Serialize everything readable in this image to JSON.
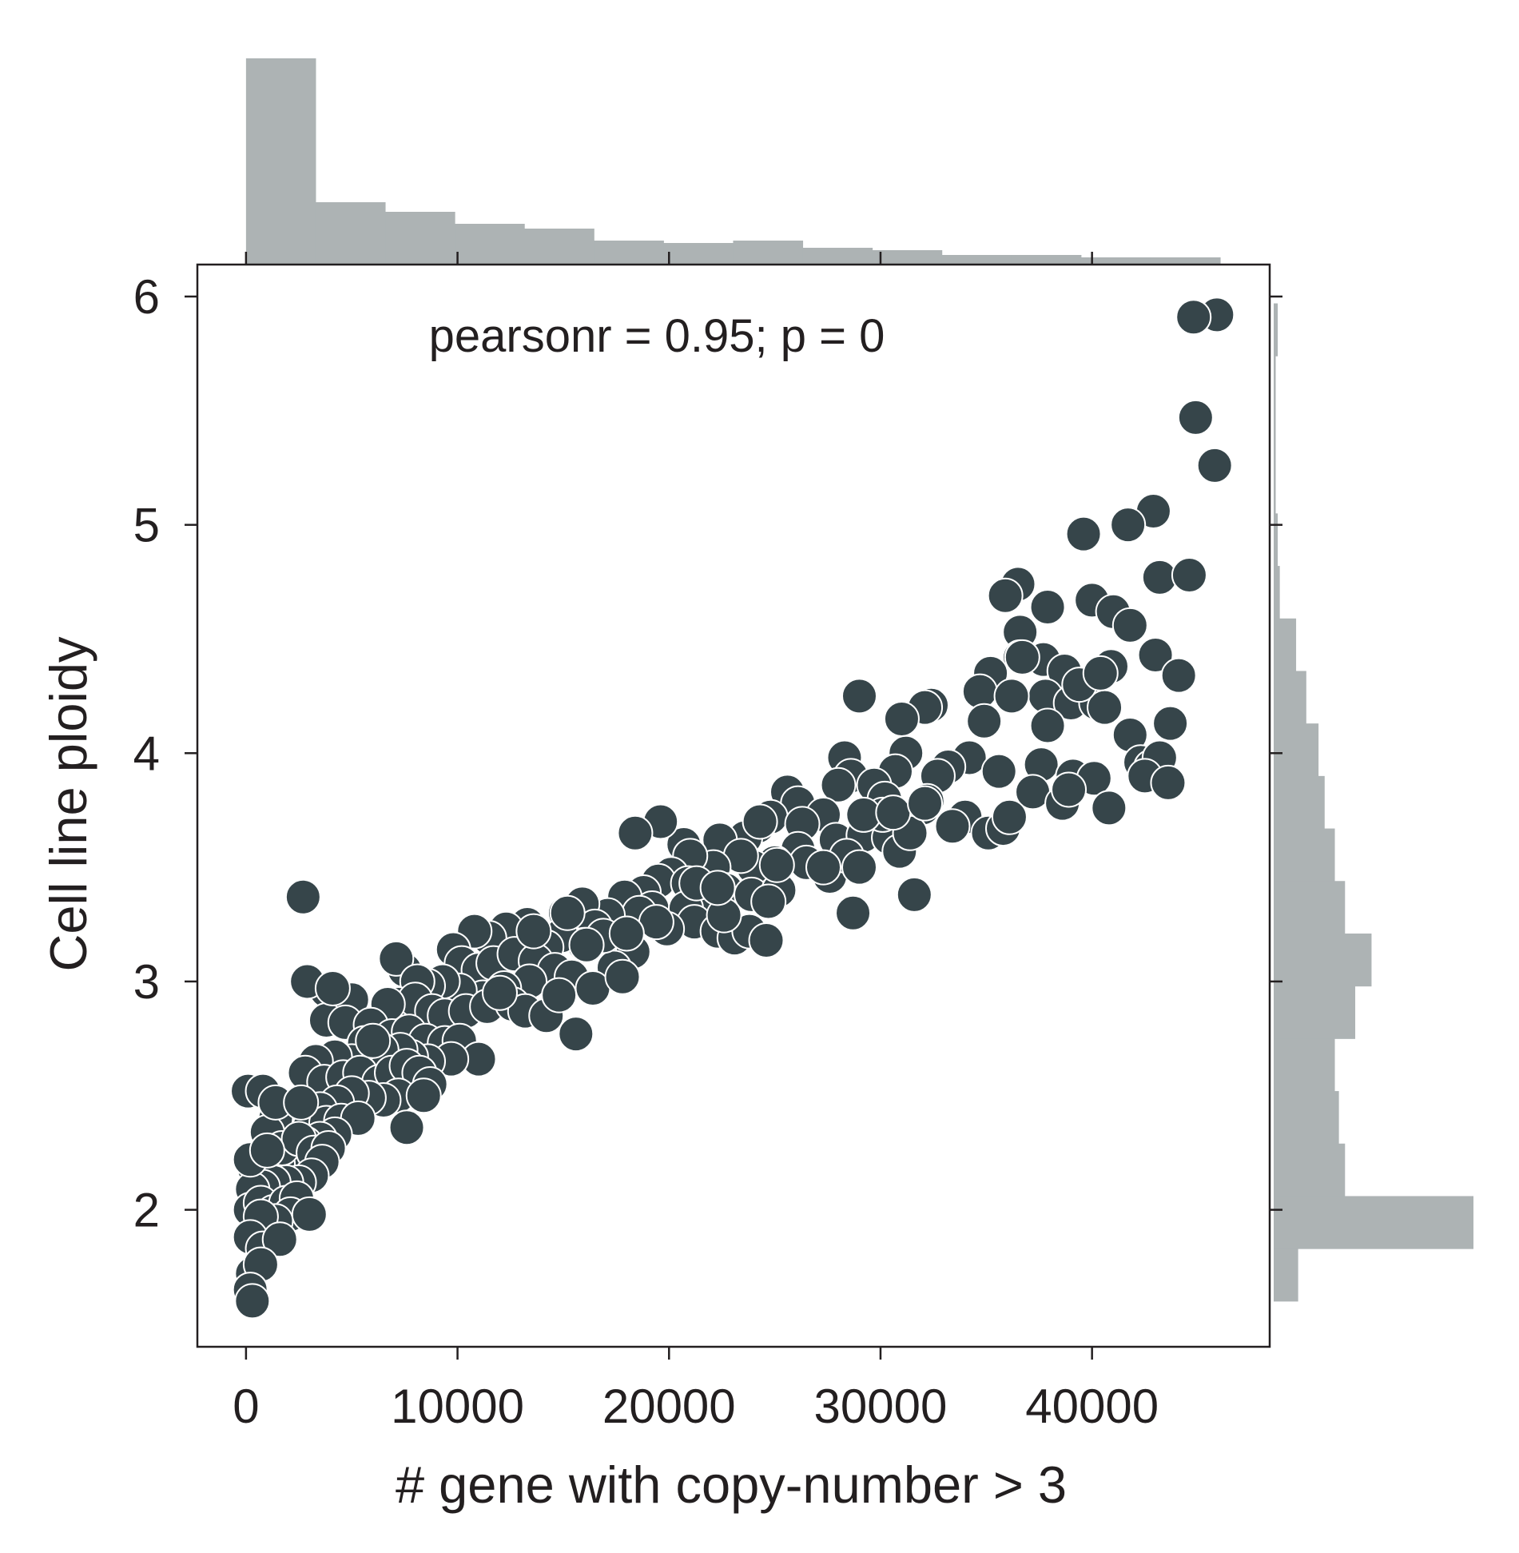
{
  "chart_data": {
    "type": "scatter",
    "xlabel": "# gene with copy-number > 3",
    "ylabel": "Cell line ploidy",
    "annotation": "pearsonr = 0.95; p = 0",
    "xlim": [
      -2300,
      48400
    ],
    "ylim": [
      1.4,
      6.14
    ],
    "xticks": [
      0,
      10000,
      20000,
      30000,
      40000
    ],
    "xtick_labels": [
      "0",
      "10000",
      "20000",
      "30000",
      "40000"
    ],
    "yticks": [
      2,
      3,
      4,
      5,
      6
    ],
    "ytick_labels": [
      "2",
      "3",
      "4",
      "5",
      "6"
    ],
    "grid": false,
    "colors": {
      "points": "#36454a",
      "point_edge": "#ffffff",
      "histogram": "#adb3b4",
      "axis": "#231f20"
    },
    "x_histogram": {
      "bin_edges": [
        0,
        3290,
        6580,
        9870,
        13160,
        16450,
        19740,
        23030,
        26320,
        29610,
        32900,
        36190,
        39480,
        42770,
        46060
      ],
      "counts": [
        86,
        26,
        22,
        17,
        15,
        10,
        9,
        10,
        7,
        6,
        4,
        4,
        3,
        3
      ]
    },
    "y_histogram": {
      "bin_edges": [
        1.6,
        1.83,
        2.06,
        2.29,
        2.52,
        2.75,
        2.98,
        3.21,
        3.44,
        3.67,
        3.9,
        4.13,
        4.36,
        4.59,
        4.82,
        5.05,
        5.28,
        5.51,
        5.74,
        5.97
      ],
      "counts": [
        12,
        98,
        35,
        32,
        30,
        40,
        48,
        35,
        30,
        25,
        22,
        16,
        11,
        3,
        2,
        1,
        1,
        1,
        2
      ]
    },
    "points": [
      [
        45900,
        5.92
      ],
      [
        44800,
        5.91
      ],
      [
        44900,
        5.47
      ],
      [
        45800,
        5.26
      ],
      [
        42900,
        5.06
      ],
      [
        41700,
        5.0
      ],
      [
        39600,
        4.96
      ],
      [
        43200,
        4.77
      ],
      [
        44600,
        4.78
      ],
      [
        36500,
        4.74
      ],
      [
        35900,
        4.69
      ],
      [
        37900,
        4.64
      ],
      [
        40000,
        4.67
      ],
      [
        41000,
        4.62
      ],
      [
        36600,
        4.53
      ],
      [
        41800,
        4.56
      ],
      [
        36600,
        4.42
      ],
      [
        37700,
        4.41
      ],
      [
        43000,
        4.43
      ],
      [
        40900,
        4.38
      ],
      [
        35200,
        4.35
      ],
      [
        38700,
        4.36
      ],
      [
        34700,
        4.27
      ],
      [
        37800,
        4.25
      ],
      [
        36200,
        4.25
      ],
      [
        39000,
        4.22
      ],
      [
        40200,
        4.22
      ],
      [
        40600,
        4.2
      ],
      [
        44100,
        4.34
      ],
      [
        32400,
        4.21
      ],
      [
        32100,
        4.2
      ],
      [
        29000,
        4.25
      ],
      [
        31000,
        4.15
      ],
      [
        34900,
        4.14
      ],
      [
        37900,
        4.12
      ],
      [
        43700,
        4.13
      ],
      [
        31200,
        4.0
      ],
      [
        34200,
        3.98
      ],
      [
        41800,
        4.08
      ],
      [
        42300,
        3.96
      ],
      [
        42800,
        3.94
      ],
      [
        43200,
        3.98
      ],
      [
        42500,
        3.9
      ],
      [
        43600,
        3.87
      ],
      [
        35600,
        3.92
      ],
      [
        37600,
        3.95
      ],
      [
        39100,
        3.9
      ],
      [
        40100,
        3.89
      ],
      [
        28300,
        3.98
      ],
      [
        28600,
        3.9
      ],
      [
        30700,
        3.92
      ],
      [
        33200,
        3.94
      ],
      [
        32700,
        3.9
      ],
      [
        37200,
        3.83
      ],
      [
        38600,
        3.78
      ],
      [
        38900,
        3.84
      ],
      [
        40800,
        3.76
      ],
      [
        28000,
        3.86
      ],
      [
        29700,
        3.86
      ],
      [
        30200,
        3.8
      ],
      [
        32200,
        3.79
      ],
      [
        32000,
        3.76
      ],
      [
        34000,
        3.72
      ],
      [
        35100,
        3.65
      ],
      [
        35800,
        3.67
      ],
      [
        36100,
        3.72
      ],
      [
        25600,
        3.83
      ],
      [
        26100,
        3.78
      ],
      [
        27300,
        3.73
      ],
      [
        24800,
        3.72
      ],
      [
        26300,
        3.69
      ],
      [
        27900,
        3.62
      ],
      [
        29200,
        3.64
      ],
      [
        30400,
        3.63
      ],
      [
        30900,
        3.57
      ],
      [
        31400,
        3.65
      ],
      [
        30100,
        3.73
      ],
      [
        33400,
        3.68
      ],
      [
        24200,
        3.68
      ],
      [
        23600,
        3.63
      ],
      [
        22400,
        3.62
      ],
      [
        20700,
        3.6
      ],
      [
        19600,
        3.7
      ],
      [
        18400,
        3.65
      ],
      [
        26100,
        3.58
      ],
      [
        25000,
        3.52
      ],
      [
        26500,
        3.52
      ],
      [
        27600,
        3.46
      ],
      [
        28400,
        3.55
      ],
      [
        29000,
        3.5
      ],
      [
        28700,
        3.3
      ],
      [
        31600,
        3.38
      ],
      [
        24000,
        3.5
      ],
      [
        23400,
        3.55
      ],
      [
        22100,
        3.5
      ],
      [
        21000,
        3.55
      ],
      [
        20100,
        3.47
      ],
      [
        19500,
        3.44
      ],
      [
        20900,
        3.43
      ],
      [
        21800,
        3.38
      ],
      [
        22700,
        3.4
      ],
      [
        23900,
        3.38
      ],
      [
        25200,
        3.4
      ],
      [
        24700,
        3.35
      ],
      [
        18800,
        3.39
      ],
      [
        17900,
        3.37
      ],
      [
        19200,
        3.32
      ],
      [
        20800,
        3.32
      ],
      [
        21200,
        3.26
      ],
      [
        22300,
        3.22
      ],
      [
        23100,
        3.19
      ],
      [
        23800,
        3.22
      ],
      [
        24600,
        3.18
      ],
      [
        22600,
        3.29
      ],
      [
        19900,
        3.23
      ],
      [
        18600,
        3.3
      ],
      [
        17100,
        3.29
      ],
      [
        15900,
        3.34
      ],
      [
        15100,
        3.3
      ],
      [
        16500,
        3.24
      ],
      [
        17600,
        3.18
      ],
      [
        18300,
        3.13
      ],
      [
        17400,
        3.06
      ],
      [
        16900,
        3.2
      ],
      [
        16000,
        3.16
      ],
      [
        14900,
        3.2
      ],
      [
        14200,
        3.15
      ],
      [
        13300,
        3.25
      ],
      [
        12300,
        3.23
      ],
      [
        11500,
        3.19
      ],
      [
        10800,
        3.22
      ],
      [
        9800,
        3.14
      ],
      [
        10200,
        3.08
      ],
      [
        11000,
        3.05
      ],
      [
        11700,
        3.08
      ],
      [
        12700,
        3.12
      ],
      [
        13700,
        3.09
      ],
      [
        14600,
        3.05
      ],
      [
        15400,
        3.02
      ],
      [
        16400,
        2.97
      ],
      [
        17800,
        3.02
      ],
      [
        13400,
        3.0
      ],
      [
        12200,
        2.97
      ],
      [
        11200,
        2.93
      ],
      [
        10100,
        2.96
      ],
      [
        9300,
        3.0
      ],
      [
        8600,
        2.98
      ],
      [
        7500,
        3.05
      ],
      [
        7100,
        3.1
      ],
      [
        8100,
        3.0
      ],
      [
        7200,
        2.9
      ],
      [
        8000,
        2.92
      ],
      [
        8800,
        2.87
      ],
      [
        9400,
        2.85
      ],
      [
        10400,
        2.87
      ],
      [
        11400,
        2.89
      ],
      [
        12600,
        2.9
      ],
      [
        13200,
        2.87
      ],
      [
        14200,
        2.85
      ],
      [
        14800,
        2.94
      ],
      [
        15600,
        2.77
      ],
      [
        5000,
        2.92
      ],
      [
        3800,
        2.96
      ],
      [
        6700,
        2.9
      ],
      [
        3800,
        2.83
      ],
      [
        4700,
        2.82
      ],
      [
        5900,
        2.81
      ],
      [
        6900,
        2.76
      ],
      [
        7700,
        2.78
      ],
      [
        8500,
        2.74
      ],
      [
        9400,
        2.73
      ],
      [
        10100,
        2.74
      ],
      [
        11000,
        2.66
      ],
      [
        9700,
        2.66
      ],
      [
        8600,
        2.65
      ],
      [
        7800,
        2.67
      ],
      [
        7300,
        2.7
      ],
      [
        6400,
        2.7
      ],
      [
        5600,
        2.73
      ],
      [
        5000,
        2.65
      ],
      [
        4200,
        2.67
      ],
      [
        3300,
        2.65
      ],
      [
        2800,
        2.6
      ],
      [
        3700,
        2.56
      ],
      [
        4600,
        2.58
      ],
      [
        5400,
        2.6
      ],
      [
        6300,
        2.56
      ],
      [
        6900,
        2.6
      ],
      [
        7600,
        2.63
      ],
      [
        8200,
        2.6
      ],
      [
        8700,
        2.55
      ],
      [
        7200,
        2.5
      ],
      [
        6500,
        2.48
      ],
      [
        5800,
        2.49
      ],
      [
        5000,
        2.51
      ],
      [
        4300,
        2.47
      ],
      [
        3500,
        2.44
      ],
      [
        2700,
        2.4
      ],
      [
        1900,
        2.37
      ],
      [
        2100,
        2.43
      ],
      [
        1400,
        2.4
      ],
      [
        1000,
        2.34
      ],
      [
        3000,
        2.36
      ],
      [
        3800,
        2.38
      ],
      [
        4500,
        2.39
      ],
      [
        5300,
        2.4
      ],
      [
        8400,
        2.5
      ],
      [
        7600,
        2.36
      ],
      [
        4200,
        2.33
      ],
      [
        3500,
        2.31
      ],
      [
        2800,
        2.29
      ],
      [
        2300,
        2.23
      ],
      [
        1500,
        2.2
      ],
      [
        900,
        2.2
      ],
      [
        400,
        2.18
      ],
      [
        1700,
        2.27
      ],
      [
        2500,
        2.31
      ],
      [
        3200,
        2.25
      ],
      [
        3900,
        2.27
      ],
      [
        3600,
        2.21
      ],
      [
        3100,
        2.15
      ],
      [
        2500,
        2.12
      ],
      [
        1900,
        2.12
      ],
      [
        1300,
        2.12
      ],
      [
        800,
        2.1
      ],
      [
        300,
        2.09
      ],
      [
        200,
        2.0
      ],
      [
        700,
        2.03
      ],
      [
        1300,
        1.99
      ],
      [
        1900,
        2.03
      ],
      [
        2400,
        2.05
      ],
      [
        2100,
        1.98
      ],
      [
        1400,
        1.95
      ],
      [
        700,
        1.97
      ],
      [
        200,
        1.88
      ],
      [
        800,
        1.83
      ],
      [
        1600,
        1.87
      ],
      [
        300,
        1.72
      ],
      [
        700,
        1.76
      ],
      [
        200,
        1.65
      ],
      [
        300,
        1.6
      ],
      [
        200,
        2.22
      ],
      [
        100,
        2.52
      ],
      [
        800,
        2.52
      ],
      [
        1400,
        2.47
      ],
      [
        2600,
        2.47
      ],
      [
        2900,
        3.0
      ],
      [
        2700,
        3.37
      ],
      [
        4100,
        2.97
      ],
      [
        3000,
        1.98
      ],
      [
        1000,
        2.26
      ],
      [
        6000,
        2.74
      ],
      [
        12000,
        2.95
      ],
      [
        15200,
        3.3
      ],
      [
        16100,
        3.16
      ],
      [
        13600,
        3.22
      ],
      [
        21300,
        3.43
      ],
      [
        25100,
        3.51
      ],
      [
        27300,
        3.5
      ],
      [
        29200,
        3.73
      ],
      [
        30600,
        3.74
      ],
      [
        32100,
        3.78
      ],
      [
        36700,
        4.42
      ],
      [
        39400,
        4.3
      ],
      [
        40400,
        4.35
      ],
      [
        24300,
        3.7
      ],
      [
        22300,
        3.41
      ],
      [
        19400,
        3.26
      ],
      [
        18000,
        3.21
      ]
    ]
  }
}
